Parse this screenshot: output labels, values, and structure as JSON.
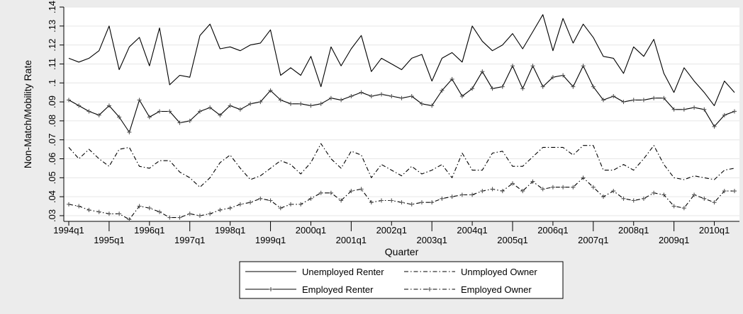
{
  "chart_data": {
    "type": "line",
    "xlabel": "Quarter",
    "ylabel": "Non-Match/Mobility  Rate",
    "ylim": [
      0.027,
      0.14
    ],
    "xlim": [
      0,
      66
    ],
    "yticks": [
      {
        "v": 0.03,
        "label": ".03"
      },
      {
        "v": 0.04,
        "label": ".04"
      },
      {
        "v": 0.05,
        "label": ".05"
      },
      {
        "v": 0.06,
        "label": ".06"
      },
      {
        "v": 0.07,
        "label": ".07"
      },
      {
        "v": 0.08,
        "label": ".08"
      },
      {
        "v": 0.09,
        "label": ".09"
      },
      {
        "v": 0.1,
        "label": ".1"
      },
      {
        "v": 0.11,
        "label": ".11"
      },
      {
        "v": 0.12,
        "label": ".12"
      },
      {
        "v": 0.13,
        "label": ".13"
      },
      {
        "v": 0.14,
        "label": ".14"
      }
    ],
    "xticks": [
      {
        "i": 0,
        "label": "1994q1"
      },
      {
        "i": 4,
        "label": "1995q1"
      },
      {
        "i": 8,
        "label": "1996q1"
      },
      {
        "i": 12,
        "label": "1997q1"
      },
      {
        "i": 16,
        "label": "1998q1"
      },
      {
        "i": 20,
        "label": "1999q1"
      },
      {
        "i": 24,
        "label": "2000q1"
      },
      {
        "i": 28,
        "label": "2001q1"
      },
      {
        "i": 32,
        "label": "2002q1"
      },
      {
        "i": 36,
        "label": "2003q1"
      },
      {
        "i": 40,
        "label": "2004q1"
      },
      {
        "i": 44,
        "label": "2005q1"
      },
      {
        "i": 48,
        "label": "2006q1"
      },
      {
        "i": 52,
        "label": "2007q1"
      },
      {
        "i": 56,
        "label": "2008q1"
      },
      {
        "i": 60,
        "label": "2009q1"
      },
      {
        "i": 64,
        "label": "2010q1"
      }
    ],
    "grid": "horizontal",
    "legend_position": "bottom",
    "series": [
      {
        "name": "Unemployed Renter",
        "style": "solid",
        "marker": "none",
        "values": [
          0.113,
          0.111,
          0.113,
          0.117,
          0.13,
          0.107,
          0.119,
          0.124,
          0.109,
          0.129,
          0.099,
          0.104,
          0.103,
          0.125,
          0.131,
          0.118,
          0.119,
          0.117,
          0.12,
          0.121,
          0.128,
          0.104,
          0.108,
          0.104,
          0.114,
          0.098,
          0.119,
          0.109,
          0.118,
          0.125,
          0.106,
          0.113,
          0.11,
          0.107,
          0.113,
          0.115,
          0.101,
          0.113,
          0.116,
          0.111,
          0.13,
          0.122,
          0.117,
          0.12,
          0.126,
          0.118,
          0.127,
          0.136,
          0.117,
          0.134,
          0.121,
          0.131,
          0.124,
          0.114,
          0.113,
          0.105,
          0.119,
          0.114,
          0.123,
          0.105,
          0.095,
          0.108,
          0.101,
          0.095,
          0.088,
          0.101,
          0.095
        ]
      },
      {
        "name": "Unmployed Owner",
        "style": "dashdot",
        "marker": "none",
        "values": [
          0.066,
          0.06,
          0.065,
          0.06,
          0.056,
          0.065,
          0.066,
          0.056,
          0.055,
          0.059,
          0.059,
          0.053,
          0.05,
          0.045,
          0.05,
          0.058,
          0.062,
          0.055,
          0.049,
          0.051,
          0.055,
          0.059,
          0.057,
          0.052,
          0.058,
          0.068,
          0.06,
          0.055,
          0.064,
          0.062,
          0.05,
          0.057,
          0.054,
          0.051,
          0.056,
          0.052,
          0.054,
          0.057,
          0.05,
          0.063,
          0.054,
          0.054,
          0.063,
          0.064,
          0.056,
          0.056,
          0.061,
          0.066,
          0.066,
          0.066,
          0.062,
          0.067,
          0.067,
          0.054,
          0.054,
          0.057,
          0.054,
          0.06,
          0.067,
          0.057,
          0.05,
          0.049,
          0.051,
          0.05,
          0.049,
          0.054,
          0.055
        ]
      },
      {
        "name": "Employed Renter",
        "style": "solid",
        "marker": "plus",
        "values": [
          0.091,
          0.088,
          0.085,
          0.083,
          0.088,
          0.082,
          0.074,
          0.091,
          0.082,
          0.085,
          0.085,
          0.079,
          0.08,
          0.085,
          0.087,
          0.083,
          0.088,
          0.086,
          0.089,
          0.09,
          0.096,
          0.091,
          0.089,
          0.089,
          0.088,
          0.089,
          0.092,
          0.091,
          0.093,
          0.095,
          0.093,
          0.094,
          0.093,
          0.092,
          0.093,
          0.089,
          0.088,
          0.096,
          0.102,
          0.093,
          0.097,
          0.106,
          0.097,
          0.098,
          0.109,
          0.097,
          0.109,
          0.098,
          0.103,
          0.104,
          0.098,
          0.109,
          0.098,
          0.091,
          0.093,
          0.09,
          0.091,
          0.091,
          0.092,
          0.092,
          0.086,
          0.086,
          0.087,
          0.086,
          0.077,
          0.083,
          0.085
        ]
      },
      {
        "name": "Employed Owner",
        "style": "dashdot",
        "marker": "plus",
        "values": [
          0.036,
          0.035,
          0.033,
          0.032,
          0.031,
          0.031,
          0.028,
          0.035,
          0.034,
          0.032,
          0.029,
          0.029,
          0.031,
          0.03,
          0.031,
          0.033,
          0.034,
          0.036,
          0.037,
          0.039,
          0.038,
          0.034,
          0.036,
          0.036,
          0.039,
          0.042,
          0.042,
          0.038,
          0.043,
          0.044,
          0.037,
          0.038,
          0.038,
          0.037,
          0.036,
          0.037,
          0.037,
          0.039,
          0.04,
          0.041,
          0.041,
          0.043,
          0.044,
          0.043,
          0.047,
          0.043,
          0.048,
          0.044,
          0.045,
          0.045,
          0.045,
          0.05,
          0.045,
          0.04,
          0.043,
          0.039,
          0.038,
          0.039,
          0.042,
          0.041,
          0.035,
          0.034,
          0.041,
          0.039,
          0.037,
          0.043,
          0.043
        ]
      }
    ]
  }
}
